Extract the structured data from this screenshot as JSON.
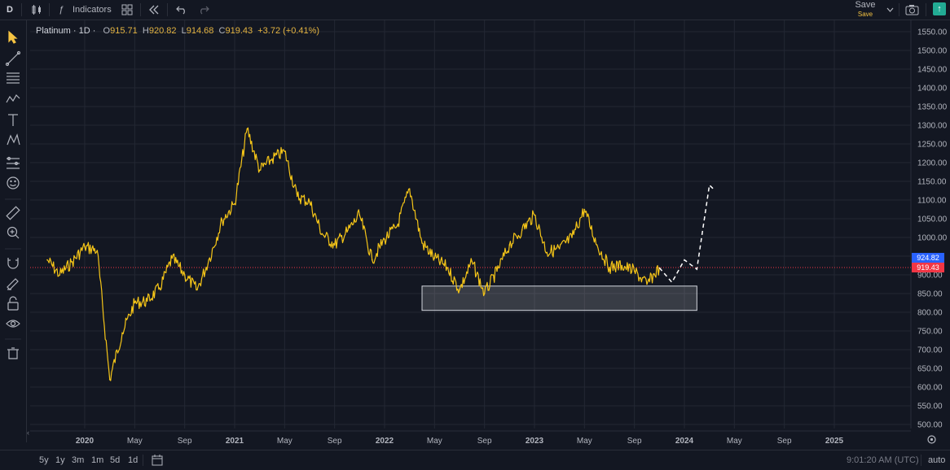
{
  "toolbar": {
    "symbol_letter": "D",
    "indicators_label": "Indicators",
    "save_label": "Save",
    "save_sublabel": "Save",
    "icons": [
      "candles-icon",
      "fx-icon",
      "layout-grid-icon",
      "replay-icon",
      "undo-icon",
      "redo-icon",
      "chevron-down-icon",
      "camera-icon",
      "publish-arrow-icon"
    ]
  },
  "legend": {
    "symbol": "Platinum · 1D ·",
    "open_label": "O",
    "open": "915.71",
    "high_label": "H",
    "high": "920.82",
    "low_label": "L",
    "low": "914.68",
    "close_label": "C",
    "close": "919.43",
    "change": "+3.72 (+0.41%)"
  },
  "left_tools": [
    "cursor-icon",
    "trend-line-icon",
    "fib-icon",
    "brush-icon",
    "text-icon",
    "pattern-icon",
    "forecast-icon",
    "emoji-icon",
    "ruler-icon",
    "zoom-in-icon",
    "magnet-icon",
    "lock-draw-icon",
    "lock-icon",
    "eye-icon",
    "trash-icon"
  ],
  "price_axis": {
    "labels": [
      "1550.00",
      "1500.00",
      "1450.00",
      "1400.00",
      "1350.00",
      "1300.00",
      "1250.00",
      "1200.00",
      "1150.00",
      "1100.00",
      "1050.00",
      "1000.00",
      "950.00",
      "900.00",
      "850.00",
      "800.00",
      "750.00",
      "700.00",
      "650.00",
      "600.00",
      "550.00",
      "500.00"
    ],
    "tag_ask": {
      "value": "924.82",
      "color": "#2962ff"
    },
    "tag_last": {
      "value": "919.43",
      "color": "#f23645"
    }
  },
  "time_axis": {
    "labels": [
      {
        "text": "2020",
        "bold": true
      },
      {
        "text": "May",
        "bold": false
      },
      {
        "text": "Sep",
        "bold": false
      },
      {
        "text": "2021",
        "bold": true
      },
      {
        "text": "May",
        "bold": false
      },
      {
        "text": "Sep",
        "bold": false
      },
      {
        "text": "2022",
        "bold": true
      },
      {
        "text": "May",
        "bold": false
      },
      {
        "text": "Sep",
        "bold": false
      },
      {
        "text": "2023",
        "bold": true
      },
      {
        "text": "May",
        "bold": false
      },
      {
        "text": "Sep",
        "bold": false
      },
      {
        "text": "2024",
        "bold": true
      },
      {
        "text": "May",
        "bold": false
      },
      {
        "text": "Sep",
        "bold": false
      },
      {
        "text": "2025",
        "bold": true
      }
    ]
  },
  "chart_data": {
    "type": "line",
    "series_color": "#f5c518",
    "ylim": [
      480,
      1570
    ],
    "points": [
      [
        "2019-10",
        940
      ],
      [
        "2019-11",
        900
      ],
      [
        "2019-12",
        935
      ],
      [
        "2020-01",
        975
      ],
      [
        "2020-02",
        965
      ],
      [
        "2020-03",
        620
      ],
      [
        "2020-04",
        745
      ],
      [
        "2020-05",
        825
      ],
      [
        "2020-06",
        830
      ],
      [
        "2020-07",
        865
      ],
      [
        "2020-08",
        945
      ],
      [
        "2020-09",
        900
      ],
      [
        "2020-10",
        860
      ],
      [
        "2020-11",
        945
      ],
      [
        "2020-12",
        1045
      ],
      [
        "2021-01",
        1090
      ],
      [
        "2021-02",
        1290
      ],
      [
        "2021-03",
        1180
      ],
      [
        "2021-04",
        1210
      ],
      [
        "2021-05",
        1230
      ],
      [
        "2021-06",
        1110
      ],
      [
        "2021-07",
        1095
      ],
      [
        "2021-08",
        1010
      ],
      [
        "2021-09",
        980
      ],
      [
        "2021-10",
        1015
      ],
      [
        "2021-11",
        1060
      ],
      [
        "2021-12",
        940
      ],
      [
        "2022-01",
        995
      ],
      [
        "2022-02",
        1030
      ],
      [
        "2022-03",
        1130
      ],
      [
        "2022-04",
        985
      ],
      [
        "2022-05",
        945
      ],
      [
        "2022-06",
        920
      ],
      [
        "2022-07",
        860
      ],
      [
        "2022-08",
        935
      ],
      [
        "2022-09",
        850
      ],
      [
        "2022-10",
        910
      ],
      [
        "2022-11",
        980
      ],
      [
        "2022-12",
        1020
      ],
      [
        "2023-01",
        1060
      ],
      [
        "2023-02",
        960
      ],
      [
        "2023-03",
        970
      ],
      [
        "2023-04",
        1000
      ],
      [
        "2023-05",
        1075
      ],
      [
        "2023-06",
        980
      ],
      [
        "2023-07",
        920
      ],
      [
        "2023-08",
        925
      ],
      [
        "2023-09",
        910
      ],
      [
        "2023-10",
        875
      ],
      [
        "2023-11",
        919
      ]
    ],
    "support_zone": {
      "x_from": "2022-04",
      "x_to": "2024-02",
      "y_from": 805,
      "y_to": 870
    },
    "projection": [
      [
        "2023-11",
        919
      ],
      [
        "2023-12",
        880
      ],
      [
        "2024-01",
        940
      ],
      [
        "2024-02",
        915
      ],
      [
        "2024-03",
        1140
      ],
      [
        "2024-03-15",
        1125
      ]
    ]
  },
  "bottom": {
    "ranges": [
      "5y",
      "1y",
      "3m",
      "1m",
      "5d",
      "1d"
    ],
    "clock": "9:01:20 AM (UTC)",
    "scale_mode": "auto"
  }
}
